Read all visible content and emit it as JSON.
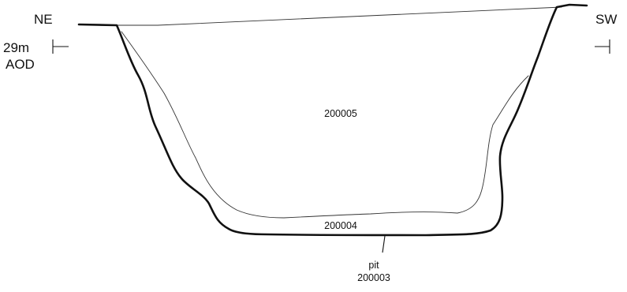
{
  "orientation": {
    "left": "NE",
    "right": "SW"
  },
  "datum": {
    "height": "29m",
    "unit": "AOD"
  },
  "contexts": {
    "upper_fill": "200005",
    "lower_fill": "200004",
    "cut_type": "pit",
    "cut_number": "200003"
  }
}
